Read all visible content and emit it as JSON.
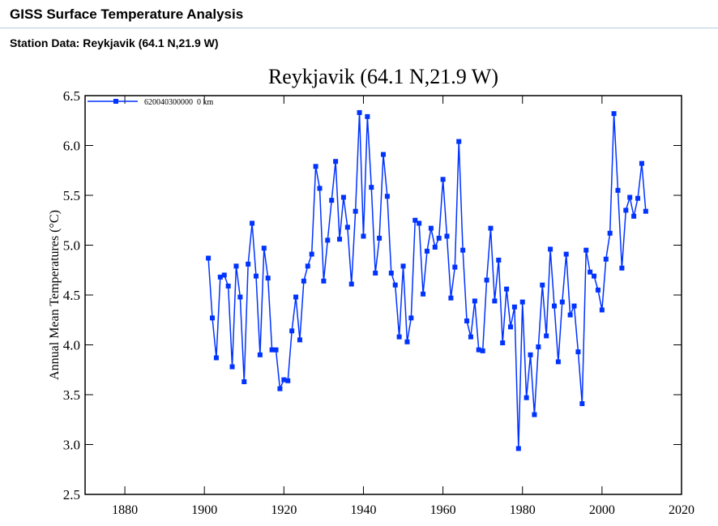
{
  "header": {
    "title": "GISS Surface Temperature Analysis",
    "subtitle": "Station Data: Reykjavik (64.1 N,21.9 W)"
  },
  "chart_data": {
    "type": "line",
    "title": "Reykjavik (64.1 N,21.9 W)",
    "xlabel": "",
    "ylabel": "Annual Mean Temperatures (°C)",
    "xlim": [
      1870,
      2020
    ],
    "ylim": [
      2.5,
      6.5
    ],
    "xticks": [
      "1880",
      "1900",
      "1920",
      "1940",
      "1960",
      "1980",
      "2000",
      "2020"
    ],
    "yticks": [
      "2.5",
      "3.0",
      "3.5",
      "4.0",
      "4.5",
      "5.0",
      "5.5",
      "6.0",
      "6.5"
    ],
    "grid": false,
    "legend": "top-left",
    "series": [
      {
        "name": "620040300000  0 km",
        "color": "#0033ff",
        "marker": "square",
        "x": [
          1901,
          1902,
          1903,
          1904,
          1905,
          1906,
          1907,
          1908,
          1909,
          1910,
          1911,
          1912,
          1913,
          1914,
          1915,
          1916,
          1917,
          1918,
          1919,
          1920,
          1921,
          1922,
          1923,
          1924,
          1925,
          1926,
          1927,
          1928,
          1929,
          1930,
          1931,
          1932,
          1933,
          1934,
          1935,
          1936,
          1937,
          1938,
          1939,
          1940,
          1941,
          1942,
          1943,
          1944,
          1945,
          1946,
          1947,
          1948,
          1949,
          1950,
          1951,
          1952,
          1953,
          1954,
          1955,
          1956,
          1957,
          1958,
          1959,
          1960,
          1961,
          1962,
          1963,
          1964,
          1965,
          1966,
          1967,
          1968,
          1969,
          1970,
          1971,
          1972,
          1973,
          1974,
          1975,
          1976,
          1977,
          1978,
          1979,
          1980,
          1981,
          1982,
          1983,
          1984,
          1985,
          1986,
          1987,
          1988,
          1989,
          1990,
          1991,
          1992,
          1993,
          1994,
          1995,
          1996,
          1997,
          1998,
          1999,
          2000,
          2001,
          2002,
          2003,
          2004,
          2005,
          2006,
          2007,
          2008,
          2009,
          2010,
          2011
        ],
        "y": [
          4.87,
          4.27,
          3.87,
          4.68,
          4.7,
          4.59,
          3.78,
          4.79,
          4.48,
          3.63,
          4.81,
          5.22,
          4.69,
          3.9,
          4.97,
          4.67,
          3.95,
          3.95,
          3.56,
          3.65,
          3.64,
          4.14,
          4.48,
          4.05,
          4.64,
          4.79,
          4.91,
          5.79,
          5.57,
          4.64,
          5.05,
          5.45,
          5.84,
          5.06,
          5.48,
          5.18,
          4.61,
          5.34,
          6.33,
          5.09,
          6.29,
          5.58,
          4.72,
          5.07,
          5.91,
          5.49,
          4.72,
          4.6,
          4.08,
          4.79,
          4.03,
          4.27,
          5.25,
          5.22,
          4.51,
          4.94,
          5.17,
          4.98,
          5.07,
          5.66,
          5.09,
          4.47,
          4.78,
          6.04,
          4.95,
          4.24,
          4.08,
          4.44,
          3.95,
          3.94,
          4.65,
          5.17,
          4.44,
          4.85,
          4.02,
          4.56,
          4.18,
          4.38,
          2.96,
          4.43,
          3.47,
          3.9,
          3.3,
          3.98,
          4.6,
          4.09,
          4.96,
          4.39,
          3.83,
          4.43,
          4.91,
          4.3,
          4.39,
          3.93,
          3.41,
          4.95,
          4.73,
          4.69,
          4.55,
          4.35,
          4.86,
          5.12,
          6.32,
          5.55,
          4.77,
          5.35,
          5.48,
          5.29,
          5.47,
          5.82,
          5.34
        ]
      }
    ]
  }
}
